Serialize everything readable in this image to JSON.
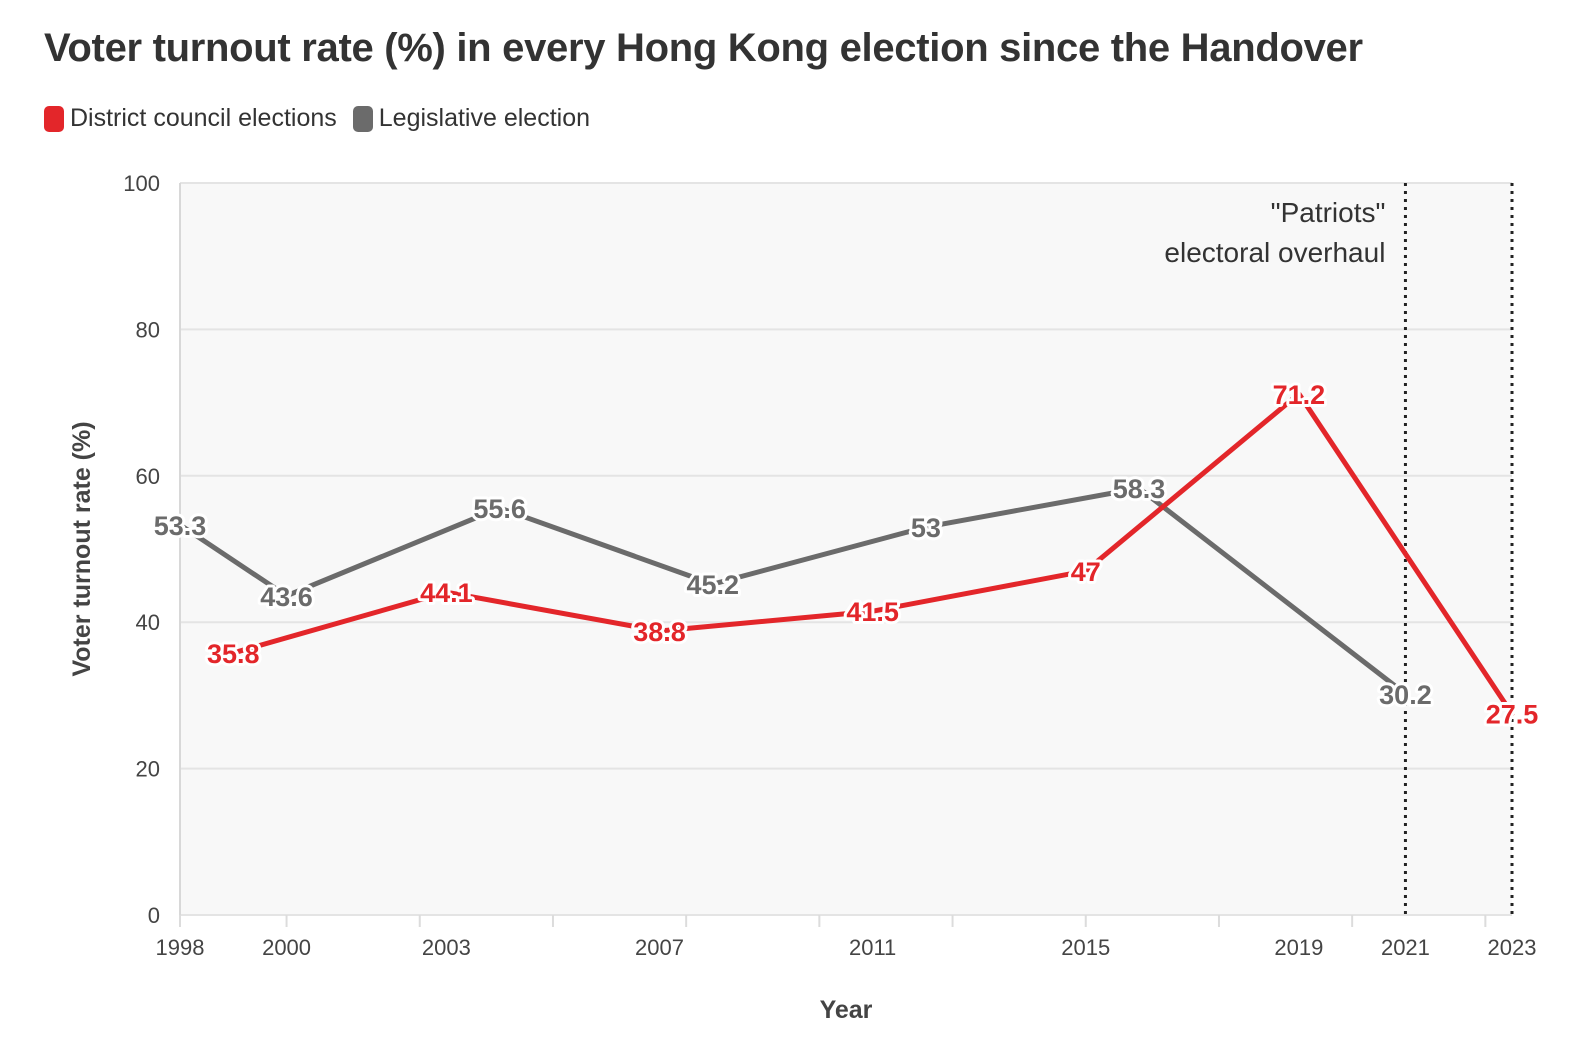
{
  "title": "Voter turnout rate (%) in every Hong Kong election since the Handover",
  "colors": {
    "district": "#e3262a",
    "legislative": "#6b6b6b",
    "plot_bg": "#f8f8f8",
    "grid": "#e4e4e4"
  },
  "legend": [
    {
      "label": "District council elections",
      "color": "#e3262a"
    },
    {
      "label": "Legislative election",
      "color": "#6b6b6b"
    }
  ],
  "chart_data": {
    "type": "line",
    "title": "Voter turnout rate (%) in every Hong Kong election since the Handover",
    "xlabel": "Year",
    "ylabel": "Voter turnout rate (%)",
    "xlim": [
      1998,
      2023
    ],
    "ylim": [
      0,
      100
    ],
    "x_ticks": [
      1998,
      2000,
      2003,
      2007,
      2011,
      2015,
      2019,
      2021,
      2023
    ],
    "y_ticks": [
      0,
      20,
      40,
      60,
      80,
      100
    ],
    "grid": true,
    "legend_position": "top-left",
    "series": [
      {
        "name": "District council elections",
        "color": "#e3262a",
        "x": [
          1999,
          2003,
          2007,
          2011,
          2015,
          2019,
          2023
        ],
        "y": [
          35.8,
          44.1,
          38.8,
          41.5,
          47,
          71.2,
          27.5
        ],
        "labels": [
          "35.8",
          "44.1",
          "38.8",
          "41.5",
          "47",
          "71.2",
          "27.5"
        ]
      },
      {
        "name": "Legislative election",
        "color": "#6b6b6b",
        "x": [
          1998,
          2000,
          2004,
          2008,
          2012,
          2016,
          2021
        ],
        "y": [
          53.3,
          43.6,
          55.6,
          45.2,
          53,
          58.3,
          30.2
        ],
        "labels": [
          "53.3",
          "43.6",
          "55.6",
          "45.2",
          "53",
          "58.3",
          "30.2"
        ]
      }
    ],
    "reference_lines": [
      {
        "x": 2021,
        "style": "dotted"
      },
      {
        "x": 2023,
        "style": "dotted"
      }
    ],
    "annotation": {
      "lines": [
        "\"Patriots\"",
        "electoral overhaul"
      ]
    }
  }
}
